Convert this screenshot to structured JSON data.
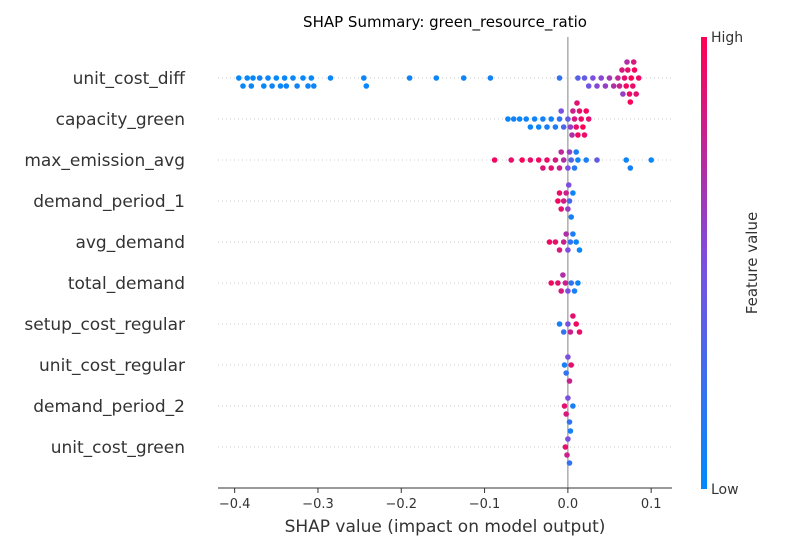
{
  "chart_data": {
    "type": "scatter",
    "subtype": "shap-beeswarm",
    "title": "SHAP Summary: green_resource_ratio",
    "xlabel": "SHAP value (impact on model output)",
    "ylabel": "",
    "xlim": [
      -0.42,
      0.125
    ],
    "xticks": [
      -0.4,
      -0.3,
      -0.2,
      -0.1,
      0.0,
      0.1
    ],
    "xtick_labels": [
      "−0.4",
      "−0.3",
      "−0.2",
      "−0.1",
      "0.0",
      "0.1"
    ],
    "grid": false,
    "features": [
      {
        "name": "unit_cost_diff",
        "points": [
          {
            "x": -0.395,
            "v": 0.02
          },
          {
            "x": -0.39,
            "v": 0.04
          },
          {
            "x": -0.385,
            "v": 0.03
          },
          {
            "x": -0.38,
            "v": 0.05
          },
          {
            "x": -0.378,
            "v": 0.02
          },
          {
            "x": -0.37,
            "v": 0.06
          },
          {
            "x": -0.365,
            "v": 0.03
          },
          {
            "x": -0.36,
            "v": 0.04
          },
          {
            "x": -0.355,
            "v": 0.07
          },
          {
            "x": -0.35,
            "v": 0.02
          },
          {
            "x": -0.345,
            "v": 0.05
          },
          {
            "x": -0.34,
            "v": 0.03
          },
          {
            "x": -0.338,
            "v": 0.06
          },
          {
            "x": -0.33,
            "v": 0.04
          },
          {
            "x": -0.325,
            "v": 0.08
          },
          {
            "x": -0.318,
            "v": 0.03
          },
          {
            "x": -0.312,
            "v": 0.05
          },
          {
            "x": -0.308,
            "v": 0.02
          },
          {
            "x": -0.305,
            "v": 0.06
          },
          {
            "x": -0.285,
            "v": 0.04
          },
          {
            "x": -0.245,
            "v": 0.05
          },
          {
            "x": -0.242,
            "v": 0.03
          },
          {
            "x": -0.19,
            "v": 0.06
          },
          {
            "x": -0.158,
            "v": 0.04
          },
          {
            "x": -0.125,
            "v": 0.05
          },
          {
            "x": -0.093,
            "v": 0.07
          },
          {
            "x": -0.01,
            "v": 0.2
          },
          {
            "x": 0.012,
            "v": 0.35
          },
          {
            "x": 0.02,
            "v": 0.4
          },
          {
            "x": 0.025,
            "v": 0.45
          },
          {
            "x": 0.03,
            "v": 0.5
          },
          {
            "x": 0.035,
            "v": 0.55
          },
          {
            "x": 0.04,
            "v": 0.55
          },
          {
            "x": 0.045,
            "v": 0.6
          },
          {
            "x": 0.05,
            "v": 0.65
          },
          {
            "x": 0.055,
            "v": 0.7
          },
          {
            "x": 0.06,
            "v": 0.75
          },
          {
            "x": 0.062,
            "v": 0.8
          },
          {
            "x": 0.065,
            "v": 0.85
          },
          {
            "x": 0.068,
            "v": 0.9
          },
          {
            "x": 0.07,
            "v": 0.95
          },
          {
            "x": 0.072,
            "v": 0.9
          },
          {
            "x": 0.074,
            "v": 0.95
          },
          {
            "x": 0.076,
            "v": 1.0
          },
          {
            "x": 0.078,
            "v": 0.92
          },
          {
            "x": 0.08,
            "v": 0.97
          },
          {
            "x": 0.082,
            "v": 0.88
          },
          {
            "x": 0.085,
            "v": 0.93
          },
          {
            "x": 0.066,
            "v": 0.6
          },
          {
            "x": 0.071,
            "v": 0.7
          },
          {
            "x": 0.075,
            "v": 0.98
          },
          {
            "x": 0.079,
            "v": 0.85
          }
        ]
      },
      {
        "name": "capacity_green",
        "points": [
          {
            "x": -0.072,
            "v": 0.05
          },
          {
            "x": -0.065,
            "v": 0.08
          },
          {
            "x": -0.058,
            "v": 0.03
          },
          {
            "x": -0.05,
            "v": 0.06
          },
          {
            "x": -0.045,
            "v": 0.04
          },
          {
            "x": -0.04,
            "v": 0.07
          },
          {
            "x": -0.035,
            "v": 0.05
          },
          {
            "x": -0.03,
            "v": 0.08
          },
          {
            "x": -0.025,
            "v": 0.1
          },
          {
            "x": -0.02,
            "v": 0.06
          },
          {
            "x": -0.015,
            "v": 0.12
          },
          {
            "x": -0.01,
            "v": 0.2
          },
          {
            "x": -0.005,
            "v": 0.3
          },
          {
            "x": 0.0,
            "v": 0.4
          },
          {
            "x": 0.003,
            "v": 0.6
          },
          {
            "x": 0.006,
            "v": 0.8
          },
          {
            "x": 0.008,
            "v": 0.85
          },
          {
            "x": 0.01,
            "v": 0.9
          },
          {
            "x": 0.012,
            "v": 0.95
          },
          {
            "x": 0.014,
            "v": 0.9
          },
          {
            "x": 0.016,
            "v": 0.95
          },
          {
            "x": 0.018,
            "v": 1.0
          },
          {
            "x": 0.02,
            "v": 0.92
          },
          {
            "x": 0.022,
            "v": 0.97
          },
          {
            "x": 0.025,
            "v": 0.9
          },
          {
            "x": -0.008,
            "v": 0.5
          },
          {
            "x": 0.005,
            "v": 0.7
          },
          {
            "x": 0.011,
            "v": 0.88
          }
        ]
      },
      {
        "name": "max_emission_avg",
        "points": [
          {
            "x": -0.088,
            "v": 0.95
          },
          {
            "x": -0.068,
            "v": 0.92
          },
          {
            "x": -0.055,
            "v": 0.97
          },
          {
            "x": -0.045,
            "v": 0.9
          },
          {
            "x": -0.035,
            "v": 0.95
          },
          {
            "x": -0.03,
            "v": 0.88
          },
          {
            "x": -0.025,
            "v": 0.93
          },
          {
            "x": -0.02,
            "v": 0.9
          },
          {
            "x": -0.015,
            "v": 0.85
          },
          {
            "x": -0.01,
            "v": 0.8
          },
          {
            "x": -0.005,
            "v": 0.7
          },
          {
            "x": 0.0,
            "v": 0.5
          },
          {
            "x": 0.004,
            "v": 0.3
          },
          {
            "x": 0.008,
            "v": 0.15
          },
          {
            "x": 0.01,
            "v": 0.1
          },
          {
            "x": 0.012,
            "v": 0.05
          },
          {
            "x": 0.035,
            "v": 0.4
          },
          {
            "x": 0.022,
            "v": 0.1
          },
          {
            "x": 0.07,
            "v": 0.05
          },
          {
            "x": 0.075,
            "v": 0.08
          },
          {
            "x": 0.1,
            "v": 0.03
          },
          {
            "x": -0.008,
            "v": 0.75
          },
          {
            "x": 0.002,
            "v": 0.6
          }
        ]
      },
      {
        "name": "demand_period_1",
        "points": [
          {
            "x": -0.012,
            "v": 0.95
          },
          {
            "x": -0.008,
            "v": 0.9
          },
          {
            "x": -0.005,
            "v": 0.85
          },
          {
            "x": -0.002,
            "v": 0.8
          },
          {
            "x": 0.0,
            "v": 0.6
          },
          {
            "x": 0.002,
            "v": 0.3
          },
          {
            "x": 0.004,
            "v": 0.1
          },
          {
            "x": 0.006,
            "v": 0.05
          },
          {
            "x": -0.01,
            "v": 0.92
          },
          {
            "x": 0.001,
            "v": 0.5
          }
        ]
      },
      {
        "name": "avg_demand",
        "points": [
          {
            "x": -0.022,
            "v": 0.95
          },
          {
            "x": -0.015,
            "v": 0.9
          },
          {
            "x": -0.01,
            "v": 0.85
          },
          {
            "x": -0.005,
            "v": 0.8
          },
          {
            "x": 0.0,
            "v": 0.5
          },
          {
            "x": 0.003,
            "v": 0.2
          },
          {
            "x": 0.006,
            "v": 0.1
          },
          {
            "x": 0.01,
            "v": 0.05
          },
          {
            "x": 0.014,
            "v": 0.03
          },
          {
            "x": -0.002,
            "v": 0.7
          }
        ]
      },
      {
        "name": "total_demand",
        "points": [
          {
            "x": -0.02,
            "v": 0.95
          },
          {
            "x": -0.012,
            "v": 0.9
          },
          {
            "x": -0.008,
            "v": 0.85
          },
          {
            "x": -0.003,
            "v": 0.8
          },
          {
            "x": 0.0,
            "v": 0.5
          },
          {
            "x": 0.004,
            "v": 0.2
          },
          {
            "x": 0.008,
            "v": 0.1
          },
          {
            "x": 0.012,
            "v": 0.05
          },
          {
            "x": -0.006,
            "v": 0.7
          }
        ]
      },
      {
        "name": "setup_cost_regular",
        "points": [
          {
            "x": -0.01,
            "v": 0.1
          },
          {
            "x": -0.005,
            "v": 0.2
          },
          {
            "x": 0.0,
            "v": 0.5
          },
          {
            "x": 0.003,
            "v": 0.8
          },
          {
            "x": 0.006,
            "v": 0.9
          },
          {
            "x": 0.01,
            "v": 0.95
          },
          {
            "x": 0.014,
            "v": 0.92
          }
        ]
      },
      {
        "name": "unit_cost_regular",
        "points": [
          {
            "x": -0.004,
            "v": 0.1
          },
          {
            "x": -0.002,
            "v": 0.2
          },
          {
            "x": 0.0,
            "v": 0.5
          },
          {
            "x": 0.002,
            "v": 0.8
          },
          {
            "x": 0.004,
            "v": 0.9
          }
        ]
      },
      {
        "name": "demand_period_2",
        "points": [
          {
            "x": -0.004,
            "v": 0.9
          },
          {
            "x": -0.002,
            "v": 0.85
          },
          {
            "x": 0.0,
            "v": 0.5
          },
          {
            "x": 0.002,
            "v": 0.2
          },
          {
            "x": 0.006,
            "v": 0.1
          }
        ]
      },
      {
        "name": "unit_cost_green",
        "points": [
          {
            "x": -0.003,
            "v": 0.9
          },
          {
            "x": -0.001,
            "v": 0.8
          },
          {
            "x": 0.0,
            "v": 0.5
          },
          {
            "x": 0.002,
            "v": 0.2
          },
          {
            "x": 0.003,
            "v": 0.1
          }
        ]
      }
    ],
    "colorbar": {
      "label": "Feature value",
      "high_label": "High",
      "low_label": "Low",
      "low_color": "#008bfb",
      "high_color": "#ff0052"
    }
  }
}
